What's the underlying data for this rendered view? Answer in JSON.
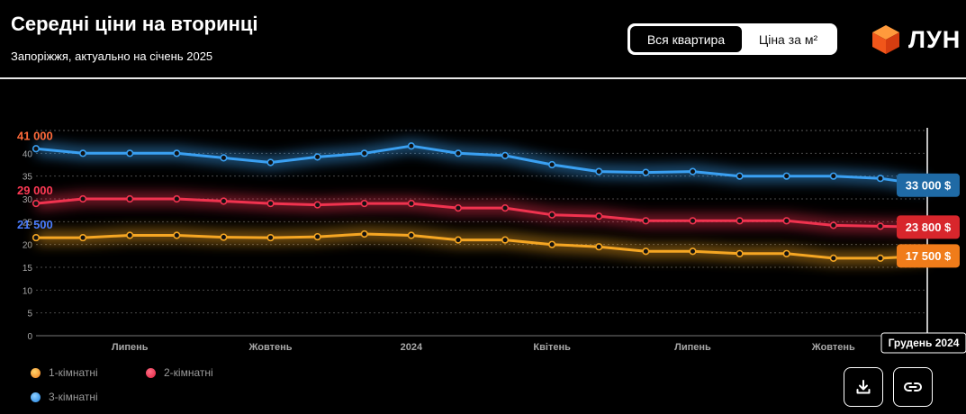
{
  "header": {
    "title": "Середні ціни на вторинці",
    "subtitle": "Запоріжжя, актуально на січень 2025"
  },
  "toggle": {
    "options": [
      "Вся квартира",
      "Ціна за м²"
    ],
    "selected": "Вся квартира"
  },
  "logo": {
    "text": "ЛУН"
  },
  "actions": {
    "download_icon": "download-icon",
    "link_icon": "link-icon"
  },
  "chart_data": {
    "type": "line",
    "x": [
      "2023-05",
      "2023-06",
      "2023-07",
      "2023-08",
      "2023-09",
      "2023-10",
      "2023-11",
      "2023-12",
      "2024-01",
      "2024-02",
      "2024-03",
      "2024-04",
      "2024-05",
      "2024-06",
      "2024-07",
      "2024-08",
      "2024-09",
      "2024-10",
      "2024-11",
      "2024-12"
    ],
    "x_tick_labels": [
      {
        "x": "2023-07",
        "label": "Липень"
      },
      {
        "x": "2023-10",
        "label": "Жовтень"
      },
      {
        "x": "2024-01",
        "label": "2024"
      },
      {
        "x": "2024-04",
        "label": "Квітень"
      },
      {
        "x": "2024-07",
        "label": "Липень"
      },
      {
        "x": "2024-10",
        "label": "Жовтень"
      }
    ],
    "y_ticks": [
      0,
      5,
      10,
      15,
      20,
      25,
      30,
      35,
      40
    ],
    "ylim": [
      0,
      45
    ],
    "grid": true,
    "legend_position": "bottom-left",
    "cursor_label": "Грудень 2024",
    "start_labels": [
      "41 000",
      "29 000",
      "21 500"
    ],
    "series": [
      {
        "name": "1-кімнатні",
        "color": "#f5a623",
        "values": [
          21.5,
          21.5,
          22.0,
          22.0,
          21.6,
          21.5,
          21.7,
          22.3,
          22.0,
          21.0,
          21.0,
          20.0,
          19.5,
          18.5,
          18.5,
          18.0,
          18.0,
          17.0,
          17.0,
          17.5
        ],
        "end_label": "17 500 $",
        "end_color": "#f07c1a"
      },
      {
        "name": "2-кімнатні",
        "color": "#f0334f",
        "values": [
          29.0,
          30.0,
          30.0,
          30.0,
          29.5,
          29.0,
          28.7,
          29.0,
          29.0,
          28.0,
          28.0,
          26.5,
          26.2,
          25.2,
          25.2,
          25.2,
          25.2,
          24.2,
          24.0,
          23.8
        ],
        "end_label": "23 800 $",
        "end_color": "#d8262c"
      },
      {
        "name": "3-кімнатні",
        "color": "#3aa0f2",
        "values": [
          41.0,
          40.0,
          40.0,
          40.0,
          39.0,
          38.0,
          39.2,
          40.0,
          41.6,
          40.0,
          39.5,
          37.5,
          36.0,
          35.8,
          36.0,
          35.0,
          35.0,
          35.0,
          34.5,
          33.0
        ],
        "end_label": "33 000 $",
        "end_color": "#1f6aa5"
      }
    ]
  }
}
